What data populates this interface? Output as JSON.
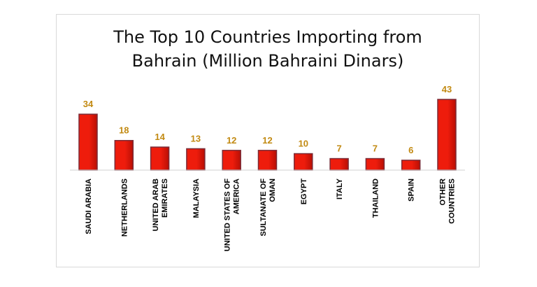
{
  "chart_data": {
    "type": "bar",
    "title": "The Top 10 Countries Importing from Bahrain (Million Bahraini Dinars)",
    "title_lines": [
      "The Top 10 Countries Importing from",
      "Bahrain (Million Bahraini Dinars)"
    ],
    "categories": [
      "SAUDI ARABIA",
      "NETHERLANDS",
      "UNITED ARAB EMIRATES",
      "MALAYSIA",
      "UNITED STATES OF AMERICA",
      "SULTANATE OF OMAN",
      "EGYPT",
      "ITALY",
      "THAILAND",
      "SPAIN",
      "OTHER COUNTRIES"
    ],
    "category_lines": [
      [
        "SAUDI ARABIA"
      ],
      [
        "NETHERLANDS"
      ],
      [
        "UNITED ARAB",
        "EMIRATES"
      ],
      [
        "MALAYSIA"
      ],
      [
        "UNITED STATES OF",
        "AMERICA"
      ],
      [
        "SULTANATE OF",
        "OMAN"
      ],
      [
        "EGYPT"
      ],
      [
        "ITALY"
      ],
      [
        "THAILAND"
      ],
      [
        "SPAIN"
      ],
      [
        "OTHER",
        "COUNTRIES"
      ]
    ],
    "values": [
      34,
      18,
      14,
      13,
      12,
      12,
      10,
      7,
      7,
      6,
      43
    ],
    "ylim": [
      0,
      43
    ],
    "xlabel": "",
    "ylabel": "",
    "grid": false,
    "legend": "none",
    "colors": {
      "bar_fill": "#ee1c0c",
      "bar_fill_dark": "#b80f05",
      "bar_outline": "#7b2b36",
      "value_label": "#c28a12",
      "axis": "#d0d0d0"
    }
  }
}
